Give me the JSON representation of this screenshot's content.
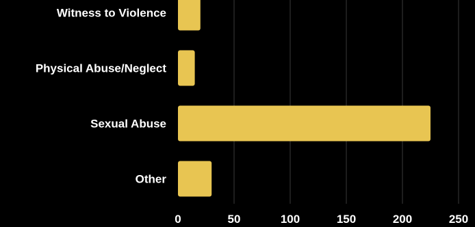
{
  "colors": {
    "background": "#000000",
    "bar": "#e8c552",
    "grid": "#3a3a3a",
    "text": "#ffffff"
  },
  "chart_data": {
    "type": "bar",
    "orientation": "horizontal",
    "categories": [
      "Witness to Violence",
      "Physical Abuse/Neglect",
      "Sexual Abuse",
      "Other"
    ],
    "values": [
      20,
      15,
      225,
      30
    ],
    "xlim": [
      0,
      250
    ],
    "xticks": [
      "0",
      "50",
      "100",
      "150",
      "200",
      "250"
    ],
    "grid": true,
    "legend": "none",
    "title": "",
    "xlabel": "",
    "ylabel": ""
  }
}
